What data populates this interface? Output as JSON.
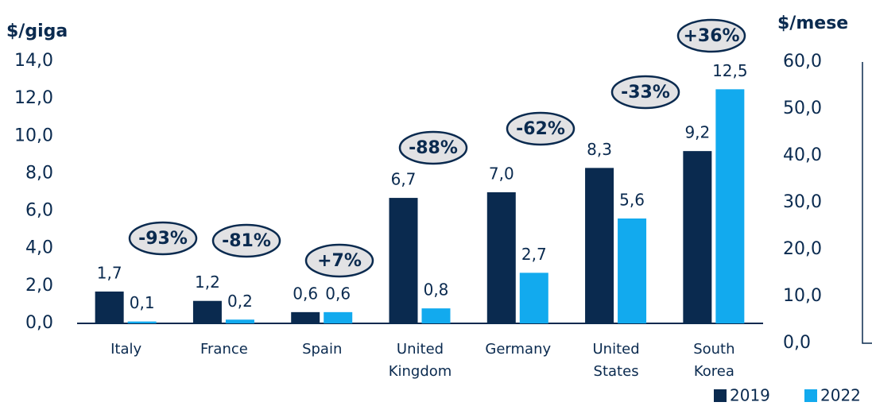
{
  "chart_data": {
    "type": "bar",
    "ylabel": "$/giga",
    "y2label": "$/mese",
    "categories": [
      "Italy",
      "France",
      "Spain",
      "United Kingdom",
      "Germany",
      "United States",
      "South Korea"
    ],
    "series": [
      {
        "name": "2019",
        "color": "#0a2a4f",
        "values": [
          1.7,
          1.2,
          0.6,
          6.7,
          7.0,
          8.3,
          9.2
        ],
        "value_labels": [
          "1,7",
          "1,2",
          "0,6",
          "6,7",
          "7,0",
          "8,3",
          "9,2"
        ]
      },
      {
        "name": "2022",
        "color": "#12aaee",
        "values": [
          0.1,
          0.2,
          0.6,
          0.8,
          2.7,
          5.6,
          12.5
        ],
        "value_labels": [
          "0,1",
          "0,2",
          "0,6",
          "0,8",
          "2,7",
          "5,6",
          "12,5"
        ]
      }
    ],
    "annotations": [
      "-93%",
      "-81%",
      "+7%",
      "-88%",
      "-62%",
      "-33%",
      "+36%"
    ],
    "ylim": [
      0,
      14
    ],
    "yticks": [
      {
        "value": 0,
        "label": "0,0"
      },
      {
        "value": 2,
        "label": "2,0"
      },
      {
        "value": 4,
        "label": "4,0"
      },
      {
        "value": 6,
        "label": "6,0"
      },
      {
        "value": 8,
        "label": "8,0"
      },
      {
        "value": 10,
        "label": "10,0"
      },
      {
        "value": 12,
        "label": "12,0"
      },
      {
        "value": 14,
        "label": "14,0"
      }
    ],
    "y2lim": [
      0,
      60
    ],
    "y2ticks": [
      {
        "value": 0,
        "label": "0,0"
      },
      {
        "value": 10,
        "label": "10,0"
      },
      {
        "value": 20,
        "label": "20,0"
      },
      {
        "value": 30,
        "label": "30,0"
      },
      {
        "value": 40,
        "label": "40,0"
      },
      {
        "value": 50,
        "label": "50,0"
      },
      {
        "value": 60,
        "label": "60,0"
      }
    ],
    "legend": "bottom-right"
  }
}
